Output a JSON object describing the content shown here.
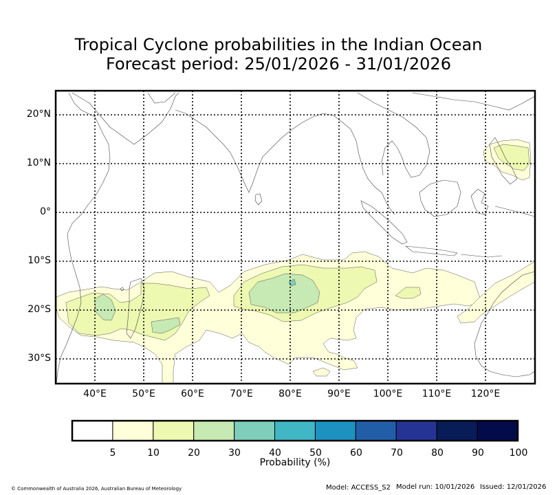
{
  "title": {
    "line1": "Tropical Cyclone probabilities in the Indian Ocean",
    "line2": "Forecast period: 25/01/2026 - 31/01/2026"
  },
  "map": {
    "lon_range": [
      32,
      130
    ],
    "lat_range": [
      -35,
      25
    ],
    "lat_ticks": [
      {
        "value": 20,
        "label": "20°N"
      },
      {
        "value": 10,
        "label": "10°N"
      },
      {
        "value": 0,
        "label": "0°"
      },
      {
        "value": -10,
        "label": "10°S"
      },
      {
        "value": -20,
        "label": "20°S"
      },
      {
        "value": -30,
        "label": "30°S"
      }
    ],
    "lon_ticks": [
      {
        "value": 40,
        "label": "40°E"
      },
      {
        "value": 50,
        "label": "50°E"
      },
      {
        "value": 60,
        "label": "60°E"
      },
      {
        "value": 70,
        "label": "70°E"
      },
      {
        "value": 80,
        "label": "80°E"
      },
      {
        "value": 90,
        "label": "90°E"
      },
      {
        "value": 100,
        "label": "100°E"
      },
      {
        "value": 110,
        "label": "110°E"
      },
      {
        "value": 120,
        "label": "120°E"
      }
    ]
  },
  "colorbar": {
    "title": "Probability (%)",
    "ticks": [
      "5",
      "10",
      "20",
      "30",
      "40",
      "50",
      "60",
      "70",
      "80",
      "90",
      "100"
    ],
    "colors": [
      "#ffffff",
      "#ffffd9",
      "#edf8b1",
      "#c7e9b4",
      "#7fcdbb",
      "#41b6c4",
      "#1d91c0",
      "#225ea8",
      "#253494",
      "#081d58",
      "#040b4a"
    ]
  },
  "footer": {
    "copyright": "© Commonwealth of Australia 2026, Australian Bureau of Meteorology",
    "model": "Model: ACCESS_S2",
    "model_run": "Model run: 10/01/2026",
    "issued": "Issued: 12/01/2026"
  }
}
